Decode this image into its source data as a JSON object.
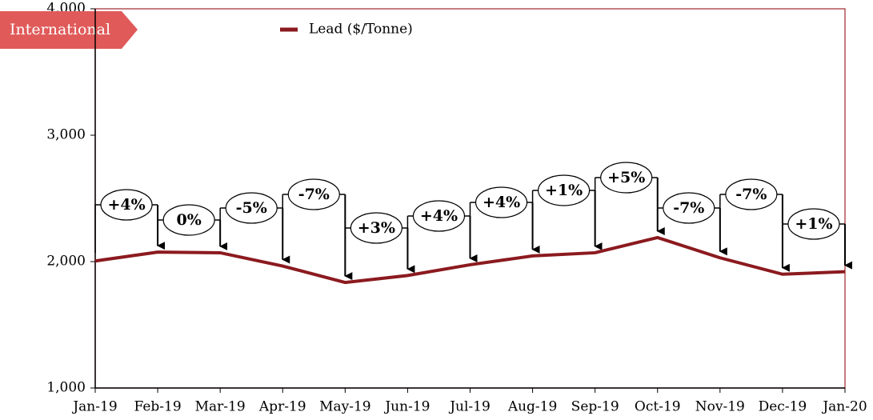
{
  "badge": "International",
  "chart_data": {
    "type": "line",
    "categories": [
      "Jan-19",
      "Feb-19",
      "Mar-19",
      "Apr-19",
      "May-19",
      "Jun-19",
      "Jul-19",
      "Aug-19",
      "Sep-19",
      "Oct-19",
      "Nov-19",
      "Dec-19",
      "Jan-20"
    ],
    "series": [
      {
        "name": "Lead ($/Tonne)",
        "color": "#8b1a1f",
        "values": [
          2005,
          2075,
          2070,
          1965,
          1835,
          1890,
          1975,
          2045,
          2070,
          2190,
          2030,
          1900,
          1920
        ]
      }
    ],
    "annotations": [
      "+4%",
      "0%",
      "-5%",
      "-7%",
      "+3%",
      "+4%",
      "+4%",
      "+1%",
      "+5%",
      "-7%",
      "-7%",
      "+1%"
    ],
    "ylim": [
      1000,
      4000
    ],
    "yticks": [
      {
        "value": 1000,
        "label": "1,000"
      },
      {
        "value": 2000,
        "label": "2,000"
      },
      {
        "value": 3000,
        "label": "3,000"
      },
      {
        "value": 4000,
        "label": "4,000"
      }
    ],
    "legend": "top"
  }
}
